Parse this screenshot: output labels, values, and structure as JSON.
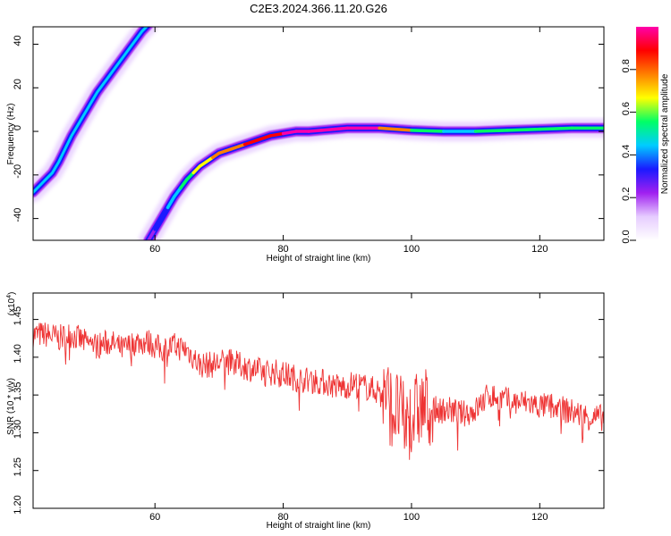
{
  "title": "C2E3.2024.366.11.20.G26",
  "chart_data": [
    {
      "type": "heatmap",
      "xlabel": "Height of straight line (km)",
      "ylabel": "Frequency (Hz)",
      "xlim": [
        41,
        130
      ],
      "ylim": [
        -50,
        48
      ],
      "xticks": [
        "60",
        "80",
        "100",
        "120"
      ],
      "yticks": [
        "40",
        "20",
        "0",
        "-20",
        "-40"
      ],
      "colorbar": {
        "label": "Normalized spectral amplitude",
        "range": [
          0.0,
          1.0
        ],
        "ticks": [
          "0.0",
          "0.2",
          "0.4",
          "0.6",
          "0.8"
        ],
        "colors": [
          "#ffffff",
          "#e6ccff",
          "#a020f0",
          "#1a1aff",
          "#00ccff",
          "#00ff66",
          "#ffff00",
          "#ff8000",
          "#ff0000",
          "#ff00aa"
        ]
      },
      "traces": [
        {
          "name": "",
          "points": [
            [
              41,
              -28
            ],
            [
              42,
              -25
            ],
            [
              43,
              -22
            ],
            [
              44,
              -19
            ],
            [
              45,
              -14
            ],
            [
              46,
              -8
            ],
            [
              47,
              -2
            ],
            [
              48,
              3
            ],
            [
              49,
              8
            ],
            [
              50,
              13
            ],
            [
              51,
              18
            ],
            [
              52,
              22
            ],
            [
              53,
              26
            ],
            [
              54,
              30
            ],
            [
              55,
              34
            ],
            [
              56,
              38
            ],
            [
              57,
              42
            ],
            [
              58,
              46
            ],
            [
              59,
              49
            ]
          ]
        },
        {
          "name": "",
          "points": [
            [
              59,
              -50
            ],
            [
              60,
              -45
            ],
            [
              61,
              -40
            ],
            [
              62,
              -35
            ],
            [
              63,
              -30
            ],
            [
              64,
              -26
            ],
            [
              65,
              -22
            ],
            [
              66,
              -19
            ],
            [
              67,
              -16
            ],
            [
              68,
              -14
            ],
            [
              69,
              -12
            ],
            [
              70,
              -10
            ],
            [
              71,
              -9
            ],
            [
              72,
              -8
            ],
            [
              73,
              -7
            ],
            [
              74,
              -6
            ],
            [
              75,
              -5
            ],
            [
              76,
              -4
            ],
            [
              77,
              -3
            ],
            [
              78,
              -2
            ],
            [
              80,
              -1
            ],
            [
              82,
              0
            ],
            [
              84,
              0
            ],
            [
              86,
              0.5
            ],
            [
              88,
              1
            ],
            [
              90,
              1.5
            ],
            [
              95,
              1.5
            ],
            [
              100,
              0.5
            ],
            [
              105,
              0
            ],
            [
              110,
              0
            ],
            [
              115,
              0.5
            ],
            [
              120,
              1
            ],
            [
              125,
              1.5
            ],
            [
              130,
              1.5
            ]
          ],
          "amplitude": [
            0.25,
            0.3,
            0.35,
            0.4,
            0.45,
            0.5,
            0.55,
            0.6,
            0.65,
            0.7,
            0.72,
            0.75,
            0.78,
            0.8,
            0.82,
            0.84,
            0.86,
            0.88,
            0.9,
            0.92,
            0.95,
            0.97,
            0.98,
            0.96,
            0.95,
            0.97,
            0.95,
            0.6,
            0.45,
            0.5,
            0.55,
            0.5,
            0.6,
            0.55
          ]
        }
      ]
    },
    {
      "type": "line",
      "xlabel": "Height of straight line (km)",
      "ylabel": "SNR (10 * v/v)",
      "yexponent": "(x10",
      "yexponent_power": "4",
      "xlim": [
        41,
        130
      ],
      "ylim": [
        1.2,
        1.485
      ],
      "xticks": [
        "60",
        "80",
        "100",
        "120"
      ],
      "yticks": [
        "1.45",
        "1.40",
        "1.35",
        "1.30",
        "1.25",
        "1.20"
      ],
      "color": "#ee3333",
      "series": [
        {
          "name": "",
          "x": [
            41,
            43,
            45,
            47,
            49,
            51,
            53,
            55,
            57,
            59,
            61,
            63,
            65,
            67,
            69,
            71,
            73,
            75,
            77,
            79,
            81,
            83,
            85,
            87,
            89,
            91,
            93,
            95,
            96,
            97,
            98,
            99,
            100,
            101,
            102,
            104,
            106,
            108,
            110,
            112,
            114,
            116,
            118,
            120,
            122,
            124,
            126,
            128,
            130
          ],
          "values": [
            1.43,
            1.43,
            1.425,
            1.43,
            1.42,
            1.415,
            1.42,
            1.41,
            1.42,
            1.42,
            1.41,
            1.415,
            1.41,
            1.39,
            1.39,
            1.395,
            1.39,
            1.385,
            1.38,
            1.38,
            1.375,
            1.37,
            1.37,
            1.365,
            1.36,
            1.365,
            1.36,
            1.355,
            1.35,
            1.33,
            1.33,
            1.31,
            1.32,
            1.33,
            1.335,
            1.33,
            1.33,
            1.325,
            1.33,
            1.35,
            1.345,
            1.34,
            1.34,
            1.335,
            1.335,
            1.33,
            1.325,
            1.32,
            1.32
          ],
          "noise": 0.018
        }
      ]
    }
  ]
}
